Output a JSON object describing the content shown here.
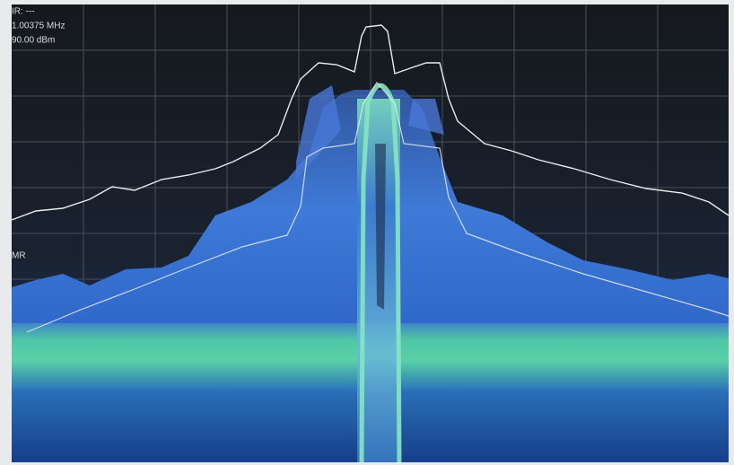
{
  "screen": {
    "marker_label": "IR: ---",
    "marker_frequency": "1.00375 MHz",
    "marker_level": "90.00 dBm",
    "trace_label": "MR"
  }
}
